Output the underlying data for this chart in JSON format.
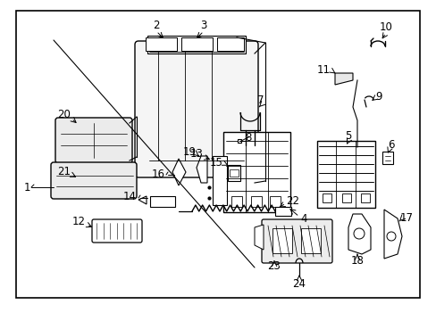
{
  "bg_color": "#ffffff",
  "border_color": "#000000",
  "line_color": "#000000",
  "figsize": [
    4.89,
    3.6
  ],
  "dpi": 100,
  "border": [
    0.06,
    0.05,
    0.9,
    0.9
  ]
}
